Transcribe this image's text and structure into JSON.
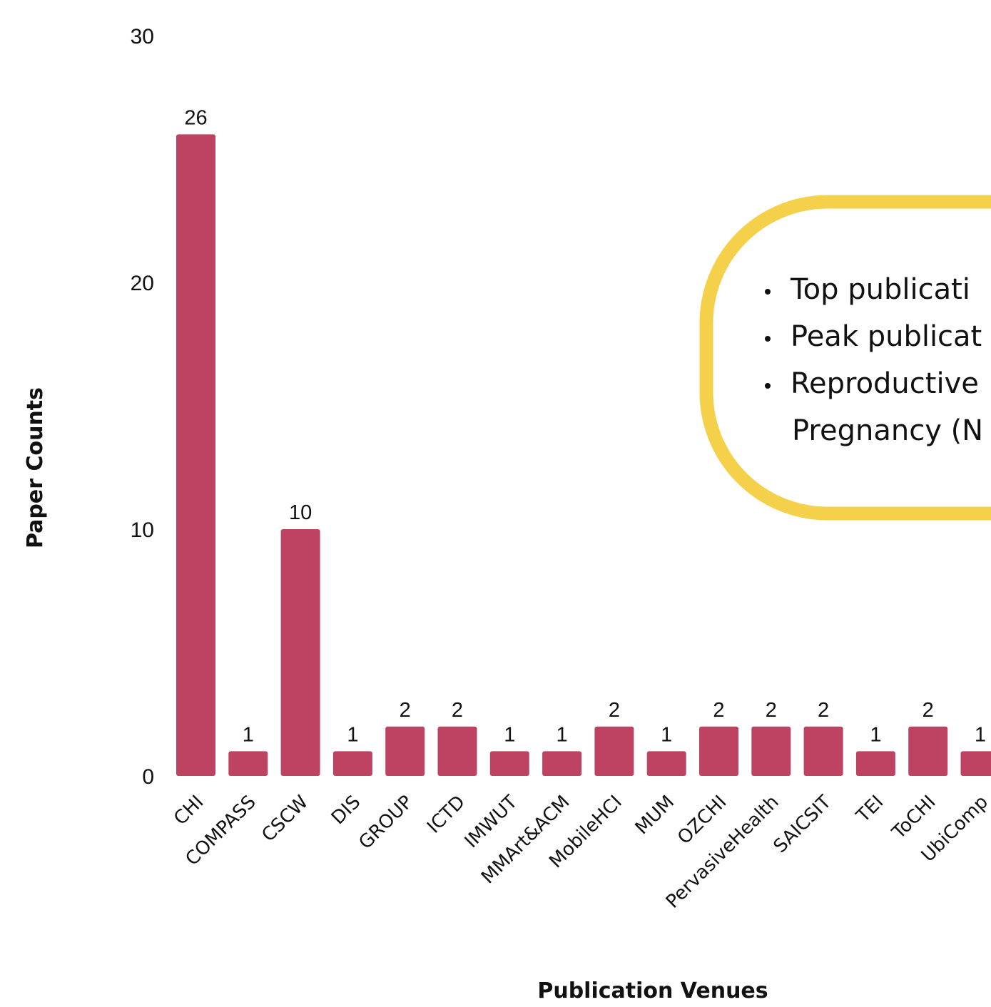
{
  "chart_data": {
    "type": "bar",
    "categories": [
      "CHI",
      "COMPASS",
      "CSCW",
      "DIS",
      "GROUP",
      "ICTD",
      "IMWUT",
      "MMArt&ACM",
      "MobileHCI",
      "MUM",
      "OZCHI",
      "PervasiveHealth",
      "SAICSIT",
      "TEI",
      "ToCHI",
      "UbiComp"
    ],
    "values": [
      26,
      1,
      10,
      1,
      2,
      2,
      1,
      1,
      2,
      1,
      2,
      2,
      2,
      1,
      2,
      1
    ],
    "xlabel": "Publication Venues",
    "ylabel": "Paper Counts",
    "ylim": [
      0,
      30
    ],
    "yticks": [
      0,
      10,
      20,
      30
    ],
    "grid": false,
    "bar_color": "#BE4262",
    "annotation": {
      "border_color": "#F5D04B",
      "bullets": [
        "Top publicati",
        "Peak publicat",
        "Reproductive"
      ],
      "continuation": "Pregnancy (N"
    }
  }
}
